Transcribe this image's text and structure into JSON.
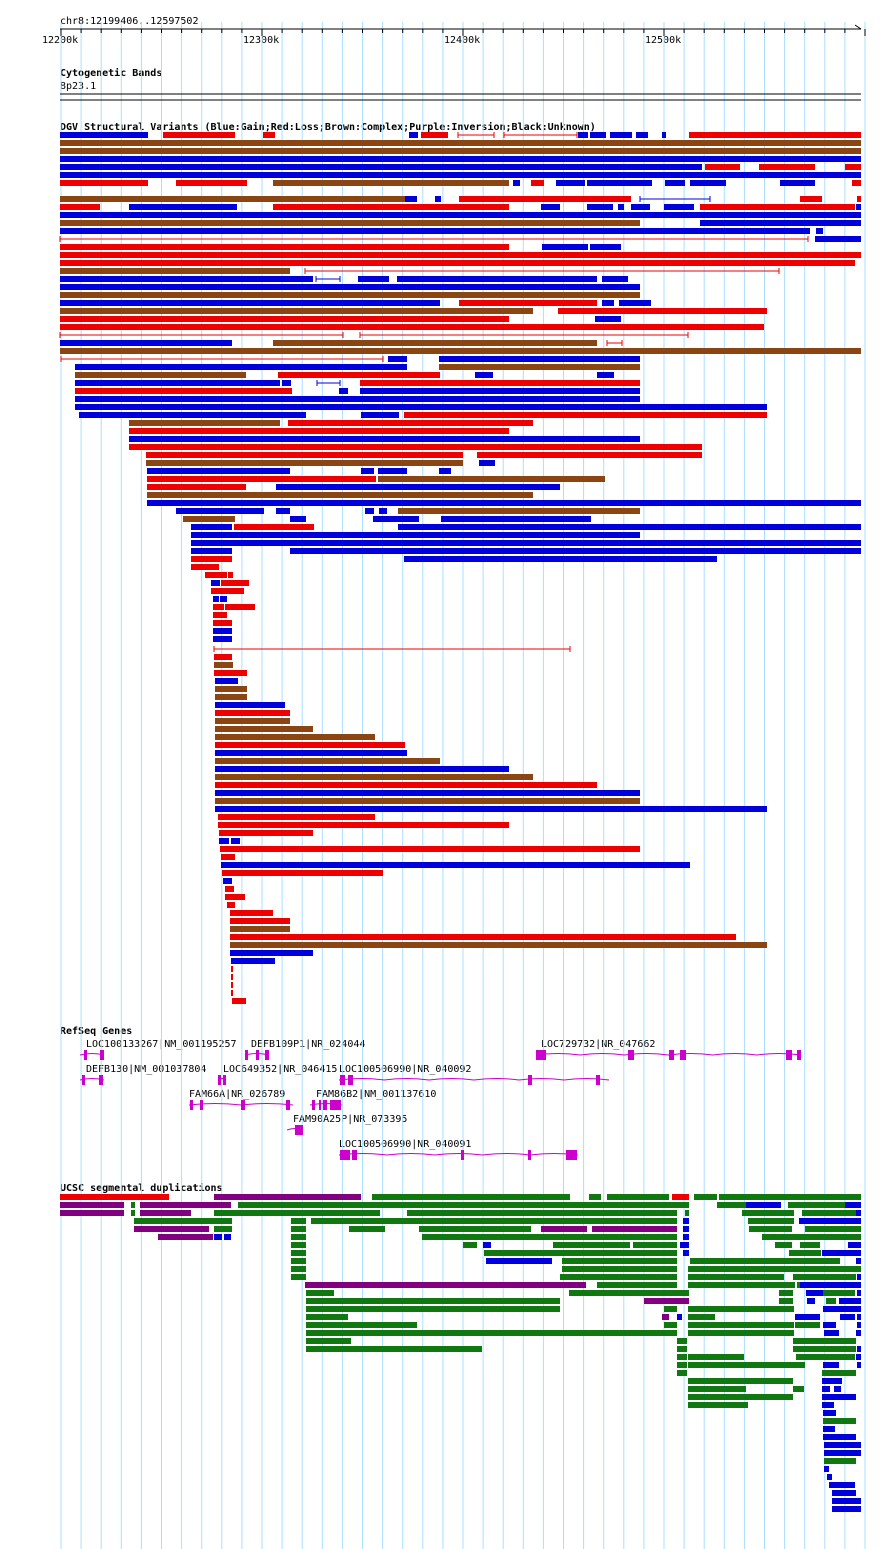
{
  "locus": "chr8:12199406..12597502",
  "ruler": {
    "ticks": [
      {
        "label": "12200k",
        "pos": 12200000
      },
      {
        "label": "12300k",
        "pos": 12300000
      },
      {
        "label": "12400k",
        "pos": 12400000
      },
      {
        "label": "12500k",
        "pos": 12500000
      }
    ]
  },
  "tracks": {
    "cytoband": {
      "title": "Cytogenetic Bands",
      "band": "8p23.1"
    },
    "dgv": {
      "title": "DGV Structural Variants (Blue:Gain;Red:Loss;Brown:Complex;Purple:Inversion;Black:Unknown)"
    },
    "refseq": {
      "title": "RefSeq Genes",
      "genes": [
        "LOC100133267|NM_001195257",
        "DEFB109P1|NR_024044",
        "LOC729732|NR_047662",
        "DEFB130|NM_001037804",
        "LOC649352|NR_046415",
        "LOC100506990|NR_040092",
        "FAM66A|NR_026789",
        "FAM86B2|NM_001137610",
        "FAM90A25P|NR_073395",
        "LOC100506990|NR_040091"
      ]
    },
    "segdup": {
      "title": "UCSC segmental duplications"
    }
  },
  "colors": {
    "gain": "#0000dd",
    "loss": "#ee0000",
    "complex": "#8b4513",
    "inversion": "#800080",
    "gene": "#cc00cc",
    "segdup_green": "#117711",
    "grid": "#aadfff"
  }
}
